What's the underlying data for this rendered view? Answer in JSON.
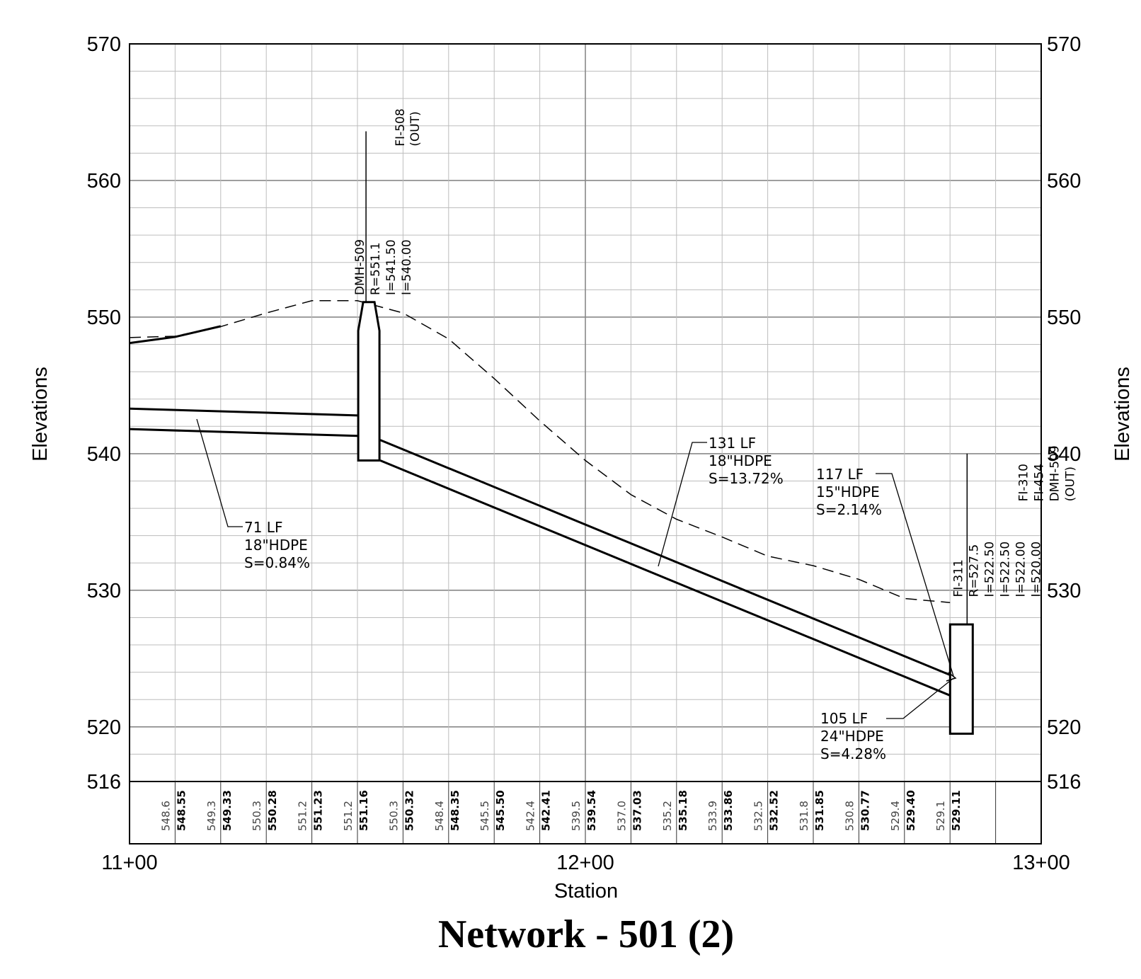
{
  "chart_data": {
    "type": "profile",
    "title": "Network - 501 (2)",
    "xlabel": "Station",
    "ylabel": "Elevations",
    "x_range": [
      1100,
      1300
    ],
    "y_range": [
      516,
      570
    ],
    "x_ticks": [
      {
        "value": 1100,
        "label": "11+00"
      },
      {
        "value": 1200,
        "label": "12+00"
      },
      {
        "value": 1300,
        "label": "13+00"
      }
    ],
    "y_ticks": [
      {
        "value": 516,
        "label": "516"
      },
      {
        "value": 520,
        "label": "520"
      },
      {
        "value": 530,
        "label": "530"
      },
      {
        "value": 540,
        "label": "540"
      },
      {
        "value": 550,
        "label": "550"
      },
      {
        "value": 560,
        "label": "560"
      },
      {
        "value": 570,
        "label": "570"
      }
    ],
    "grid": true,
    "existing_ground": [
      [
        1100,
        548.5
      ],
      [
        1110,
        548.6
      ],
      [
        1120,
        549.3
      ],
      [
        1130,
        550.3
      ],
      [
        1140,
        551.2
      ],
      [
        1150,
        551.2
      ],
      [
        1160,
        550.3
      ],
      [
        1170,
        548.4
      ],
      [
        1180,
        545.5
      ],
      [
        1190,
        542.4
      ],
      [
        1200,
        539.5
      ],
      [
        1210,
        537.0
      ],
      [
        1220,
        535.2
      ],
      [
        1230,
        533.9
      ],
      [
        1240,
        532.5
      ],
      [
        1250,
        531.8
      ],
      [
        1260,
        530.8
      ],
      [
        1270,
        529.4
      ],
      [
        1280,
        529.1
      ]
    ],
    "proposed_ground": [
      [
        1100,
        548.1
      ],
      [
        1110,
        548.55
      ],
      [
        1120,
        549.33
      ]
    ],
    "structures": [
      {
        "name": "DMH-509",
        "station": 1152.5,
        "labels": [
          "DMH-509",
          "R=551.1",
          "I=541.50",
          "I=540.00"
        ],
        "note": [
          "FI-508",
          "(OUT)"
        ],
        "rim": 551.1,
        "bottom": 539.5
      },
      {
        "name": "FI-311",
        "station": 1282.5,
        "labels": [
          "FI-311",
          "R=527.5",
          "I=522.50",
          "I=522.50",
          "I=522.00",
          "I=520.00"
        ],
        "note": [
          "FI-310",
          "FI-454",
          "DMH-509",
          "(OUT)"
        ],
        "rim": 527.5,
        "bottom": 519.5
      }
    ],
    "pipes": [
      {
        "label": [
          "71 LF",
          "18\"HDPE",
          "S=0.84%"
        ],
        "start": [
          1100,
          541.8
        ],
        "end": [
          1150,
          541.3
        ],
        "diameter_ft": 1.5
      },
      {
        "label": [
          "131 LF",
          "18\"HDPE",
          "S=13.72%"
        ],
        "start": [
          1155,
          539.5
        ],
        "end": [
          1280,
          522.3
        ],
        "diameter_ft": 1.5
      },
      {
        "label": [
          "117 LF",
          "15\"HDPE",
          "S=2.14%"
        ]
      },
      {
        "label": [
          "105 LF",
          "24\"HDPE",
          "S=4.28%"
        ]
      }
    ],
    "elevation_table": [
      {
        "station": 1110,
        "existing": "548.6",
        "proposed": "548.55"
      },
      {
        "station": 1120,
        "existing": "549.3",
        "proposed": "549.33"
      },
      {
        "station": 1130,
        "existing": "550.3",
        "proposed": "550.28"
      },
      {
        "station": 1140,
        "existing": "551.2",
        "proposed": "551.23"
      },
      {
        "station": 1150,
        "existing": "551.2",
        "proposed": "551.16"
      },
      {
        "station": 1160,
        "existing": "550.3",
        "proposed": "550.32"
      },
      {
        "station": 1170,
        "existing": "548.4",
        "proposed": "548.35"
      },
      {
        "station": 1180,
        "existing": "545.5",
        "proposed": "545.50"
      },
      {
        "station": 1190,
        "existing": "542.4",
        "proposed": "542.41"
      },
      {
        "station": 1200,
        "existing": "539.5",
        "proposed": "539.54"
      },
      {
        "station": 1210,
        "existing": "537.0",
        "proposed": "537.03"
      },
      {
        "station": 1220,
        "existing": "535.2",
        "proposed": "535.18"
      },
      {
        "station": 1230,
        "existing": "533.9",
        "proposed": "533.86"
      },
      {
        "station": 1240,
        "existing": "532.5",
        "proposed": "532.52"
      },
      {
        "station": 1250,
        "existing": "531.8",
        "proposed": "531.85"
      },
      {
        "station": 1260,
        "existing": "530.8",
        "proposed": "530.77"
      },
      {
        "station": 1270,
        "existing": "529.4",
        "proposed": "529.40"
      },
      {
        "station": 1280,
        "existing": "529.1",
        "proposed": "529.11"
      }
    ]
  }
}
